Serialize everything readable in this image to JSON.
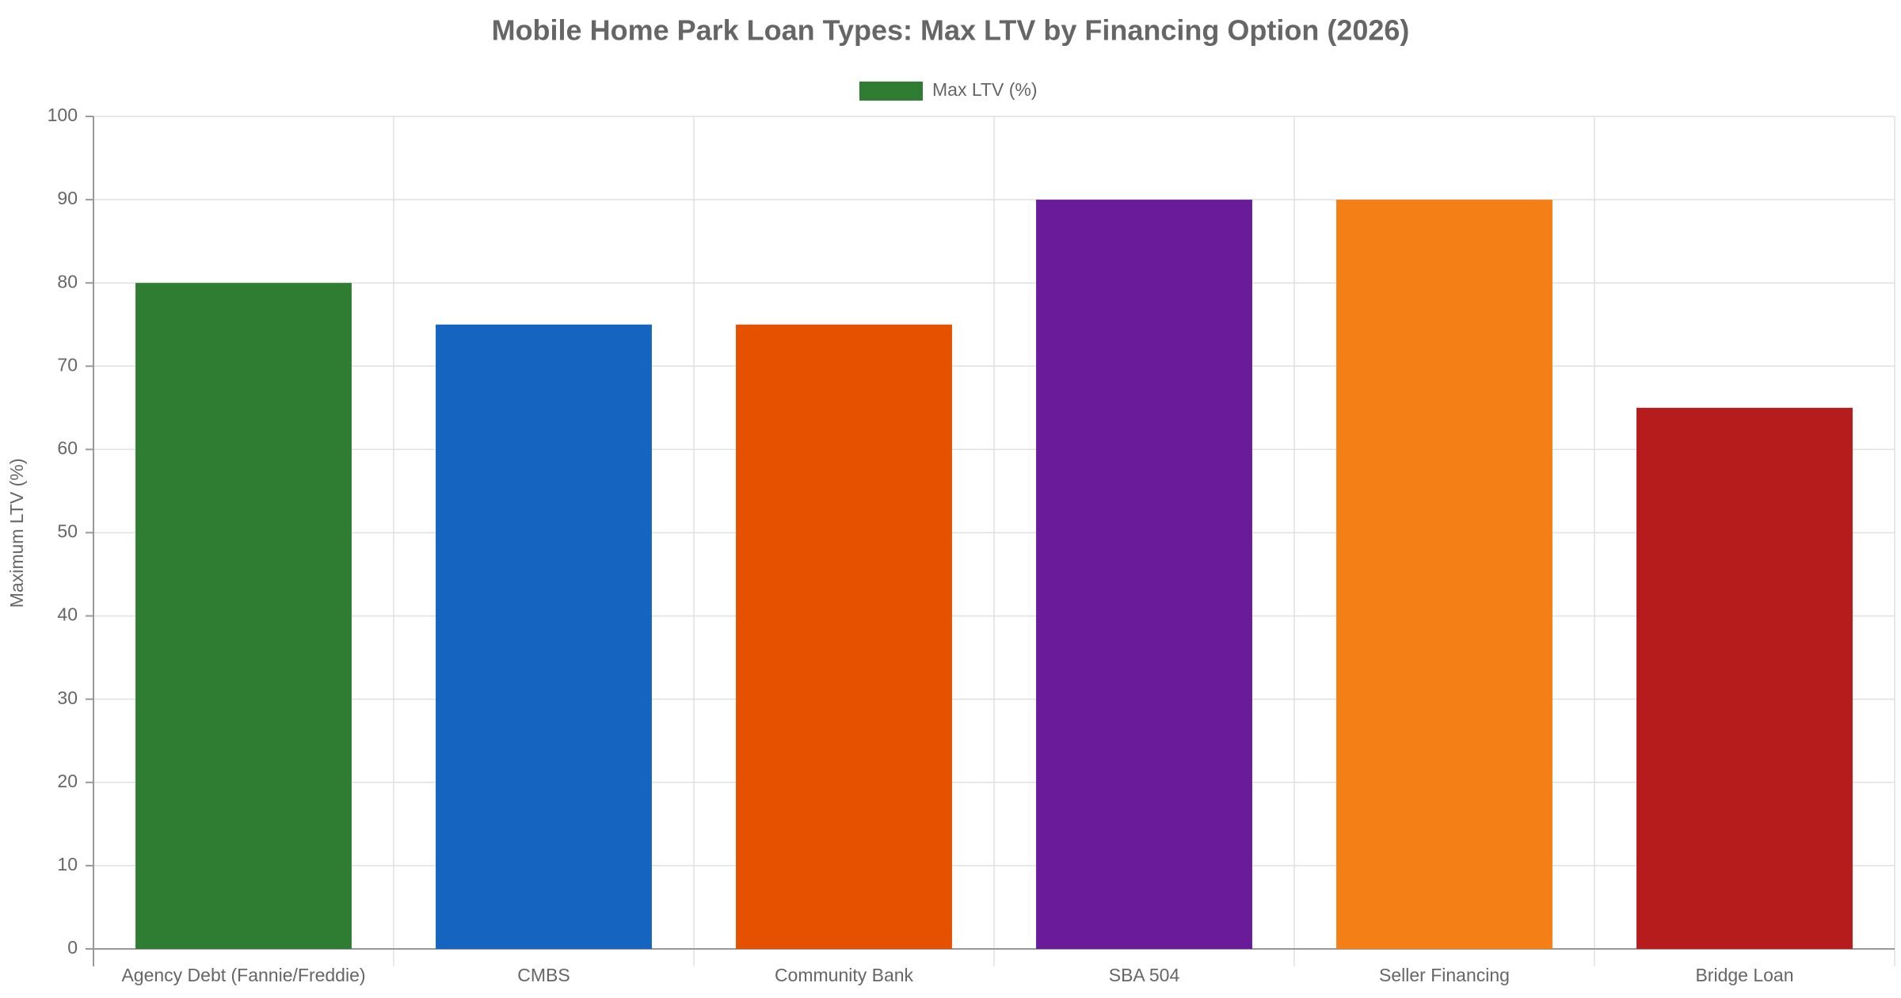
{
  "chart_data": {
    "type": "bar",
    "title": "Mobile Home Park Loan Types: Max LTV by Financing Option (2026)",
    "y_label": "Maximum LTV (%)",
    "categories": [
      "Agency Debt (Fannie/Freddie)",
      "CMBS",
      "Community Bank",
      "SBA 504",
      "Seller Financing",
      "Bridge Loan"
    ],
    "series": [
      {
        "name": "Max LTV (%)",
        "colors": [
          "#2e7d32",
          "#1565c0",
          "#e65100",
          "#6a1b9a",
          "#f57f17",
          "#b71c1c"
        ],
        "values": [
          80,
          75,
          75,
          90,
          90,
          65
        ]
      }
    ],
    "ylim": [
      0,
      100
    ],
    "yticks": [
      0,
      10,
      20,
      30,
      40,
      50,
      60,
      70,
      80,
      90,
      100
    ],
    "grid": true,
    "legend": "top"
  }
}
